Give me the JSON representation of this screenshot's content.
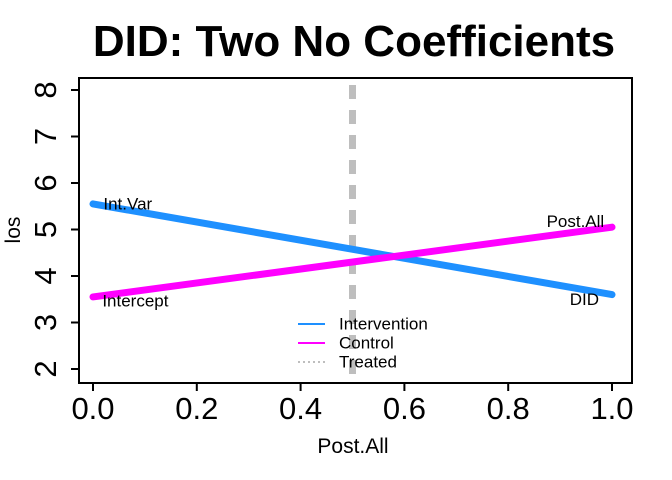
{
  "figure": {
    "background": "#FFFFFF",
    "text_color": "#000000"
  },
  "chart_data": {
    "type": "line",
    "title": "DID: Two No Coefficients",
    "xlabel": "Post.All",
    "ylabel": "los",
    "xlim": [
      0.0,
      1.0
    ],
    "ylim": [
      2,
      8
    ],
    "grid": false,
    "xticks": [
      "0.0",
      "0.2",
      "0.4",
      "0.6",
      "0.8",
      "1.0"
    ],
    "xtick_values": [
      0.0,
      0.2,
      0.4,
      0.6,
      0.8,
      1.0
    ],
    "yticks": [
      "2",
      "3",
      "4",
      "5",
      "6",
      "7",
      "8"
    ],
    "ytick_values": [
      2,
      3,
      4,
      5,
      6,
      7,
      8
    ],
    "series": [
      {
        "name": "Intervention",
        "color": "#1E90FF",
        "style": "solid",
        "x": [
          0.0,
          1.0
        ],
        "y": [
          5.55,
          3.6
        ]
      },
      {
        "name": "Control",
        "color": "#FF00FF",
        "style": "solid",
        "x": [
          0.0,
          1.0
        ],
        "y": [
          3.55,
          5.05
        ]
      }
    ],
    "reference_lines": [
      {
        "name": "Treated",
        "orientation": "vertical",
        "x": 0.5,
        "color": "#BEBEBE",
        "style": "dashed"
      }
    ],
    "annotations": [
      {
        "text": "Int.Var",
        "x": 0.02,
        "y": 5.55,
        "anchor": "start"
      },
      {
        "text": "Intercept",
        "x": 0.018,
        "y": 3.46,
        "anchor": "start"
      },
      {
        "text": "Post.All",
        "x": 0.985,
        "y": 5.17,
        "anchor": "end"
      },
      {
        "text": "DID",
        "x": 0.975,
        "y": 3.5,
        "anchor": "end"
      }
    ],
    "legend": {
      "position": "bottom-center-inside",
      "entries": [
        {
          "label": "Intervention",
          "color": "#1E90FF",
          "line_style": "solid"
        },
        {
          "label": "Control",
          "color": "#FF00FF",
          "line_style": "solid"
        },
        {
          "label": "Treated",
          "color": "#BEBEBE",
          "line_style": "dotted"
        }
      ]
    }
  }
}
